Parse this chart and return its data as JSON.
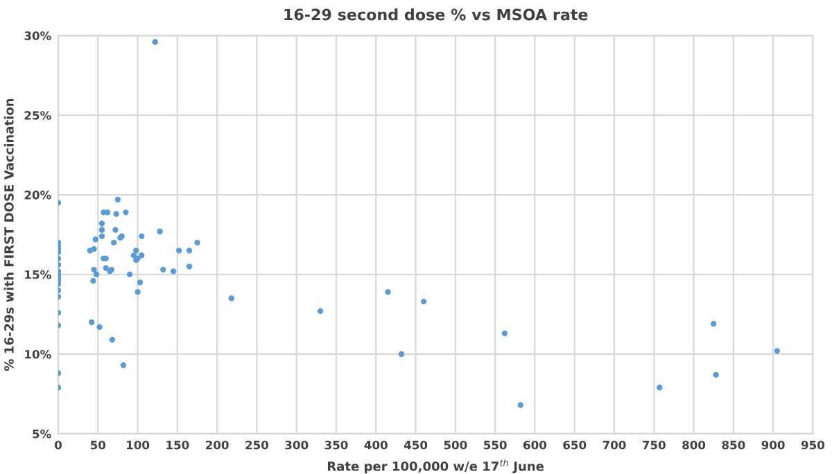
{
  "chart_data": {
    "type": "scatter",
    "title": "16-29 second dose % vs MSOA rate",
    "xlabel": "Rate per 100,000 w/e 17$^{th}$ June",
    "ylabel": "% 16-29s with FIRST DOSE Vaccination",
    "series": [
      {
        "color": "#5b9bd5",
        "x": [
          0,
          0,
          0,
          0,
          0,
          0,
          0,
          0,
          0,
          0,
          0,
          0,
          0,
          0,
          0,
          0,
          0,
          0,
          40,
          45,
          47,
          42,
          44,
          48,
          45,
          52,
          55,
          55,
          57,
          55,
          57,
          60,
          60,
          62,
          65,
          67,
          70,
          68,
          72,
          73,
          75,
          78,
          80,
          82,
          85,
          90,
          95,
          98,
          98,
          100,
          100,
          103,
          105,
          105,
          122,
          128,
          132,
          145,
          152,
          165,
          165,
          175,
          218,
          330,
          415,
          432,
          460,
          562,
          582,
          757,
          825,
          828,
          905
        ],
        "values": [
          19.5,
          17.0,
          16.8,
          16.6,
          16.4,
          16.0,
          15.6,
          15.2,
          15.0,
          14.8,
          14.6,
          14.4,
          14.0,
          13.6,
          12.6,
          11.8,
          8.8,
          7.9,
          16.5,
          16.6,
          17.2,
          12.0,
          14.6,
          15.0,
          15.3,
          11.7,
          17.8,
          18.2,
          18.9,
          17.4,
          16.0,
          16.0,
          15.4,
          18.9,
          15.2,
          15.3,
          17.0,
          10.9,
          17.8,
          18.8,
          19.7,
          17.3,
          17.4,
          9.3,
          18.9,
          15.0,
          16.2,
          15.9,
          16.5,
          13.9,
          16.0,
          14.5,
          17.4,
          16.2,
          29.6,
          17.7,
          15.3,
          15.2,
          16.5,
          15.5,
          16.5,
          17.0,
          13.5,
          12.7,
          13.9,
          10.0,
          13.3,
          11.3,
          6.8,
          7.9,
          11.9,
          8.7,
          10.2
        ]
      }
    ],
    "xlim": [
      0,
      950
    ],
    "xticks": [
      0,
      50,
      100,
      150,
      200,
      250,
      300,
      350,
      400,
      450,
      500,
      550,
      600,
      650,
      700,
      750,
      800,
      850,
      900,
      950
    ],
    "ylim": [
      5,
      30
    ],
    "yticks": [
      {
        "value": 5,
        "label": "5%"
      },
      {
        "value": 10,
        "label": "10%"
      },
      {
        "value": 15,
        "label": "15%"
      },
      {
        "value": 20,
        "label": "20%"
      },
      {
        "value": 25,
        "label": "25%"
      },
      {
        "value": 30,
        "label": "30%"
      }
    ],
    "grid": true,
    "marker": "circle",
    "legend": false
  }
}
